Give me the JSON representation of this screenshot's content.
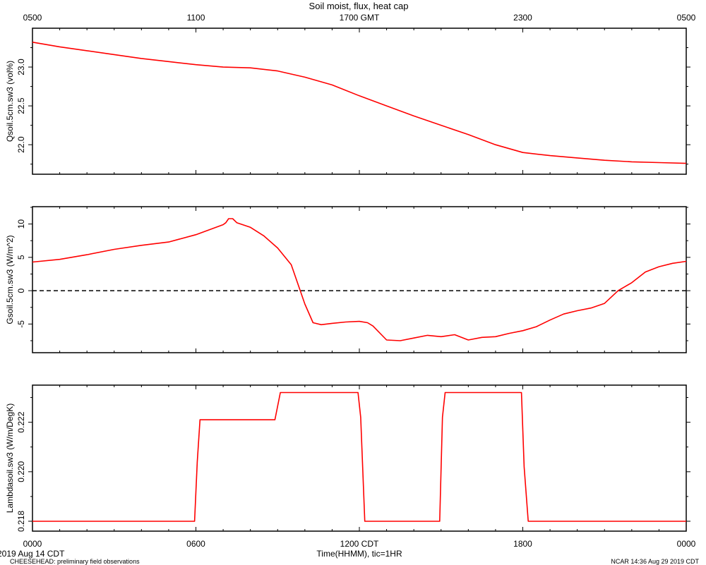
{
  "figure": {
    "title": "Soil moist, flux, heat cap",
    "colors": {
      "line": "#ff0000",
      "axis": "#000000",
      "zero_line": "#000000"
    },
    "top_axis_ticks": [
      "0500",
      "1100",
      "1700 GMT",
      "2300",
      "0500"
    ],
    "bottom_axis_ticks": [
      "0000",
      "0600",
      "1200 CDT",
      "1800",
      "0000"
    ],
    "xlabel": "Time(HHMM), tic=1HR",
    "start_date": "2019 Aug 14 CDT",
    "footer_left": "CHEESEHEAD: preliminary field observations",
    "footer_right": "NCAR 14:36 Aug 29 2019 CDT"
  },
  "chart_data": [
    {
      "type": "line",
      "ylabel": "Qsoil.5cm.sw3 (vol%)",
      "ylim": [
        21.62,
        23.5
      ],
      "yticks": [
        22.0,
        22.5,
        23.0
      ],
      "ytick_labels": [
        "22.0",
        "22.5",
        "23.0"
      ],
      "zero_line": false,
      "series": [
        {
          "x": [
            0,
            1,
            2,
            3,
            4,
            5,
            6,
            7,
            8,
            9,
            9.5,
            10,
            11,
            12,
            13,
            14,
            15,
            16,
            17,
            18,
            19,
            20,
            21,
            22,
            23,
            24
          ],
          "y": [
            23.32,
            23.26,
            23.21,
            23.16,
            23.11,
            23.07,
            23.03,
            23.0,
            22.99,
            22.95,
            22.91,
            22.87,
            22.77,
            22.63,
            22.5,
            22.37,
            22.25,
            22.13,
            22.0,
            21.9,
            21.86,
            21.83,
            21.8,
            21.78,
            21.77,
            21.76
          ]
        }
      ]
    },
    {
      "type": "line",
      "ylabel": "Gsoil.5cm.sw3 (W/m^2)",
      "ylim": [
        -9.3,
        12.6
      ],
      "yticks": [
        -5,
        0,
        5,
        10
      ],
      "ytick_labels": [
        "-5",
        "0",
        "5",
        "10"
      ],
      "zero_line": true,
      "series": [
        {
          "x": [
            0,
            1,
            2,
            3,
            4,
            5,
            6,
            7,
            7.1,
            7.2,
            7.35,
            7.5,
            8,
            8.5,
            9,
            9.5,
            10,
            10.3,
            10.6,
            11,
            11.5,
            12,
            12.3,
            12.5,
            13,
            13.5,
            14,
            14.5,
            15,
            15.5,
            16,
            16.5,
            17,
            17.5,
            18,
            18.5,
            19,
            19.5,
            20,
            20.5,
            21,
            21.5,
            22,
            22.5,
            23,
            23.5,
            24
          ],
          "y": [
            4.3,
            4.7,
            5.4,
            6.2,
            6.8,
            7.3,
            8.4,
            9.9,
            10.2,
            10.8,
            10.8,
            10.2,
            9.5,
            8.2,
            6.4,
            3.9,
            -2.0,
            -4.8,
            -5.1,
            -4.9,
            -4.7,
            -4.6,
            -4.8,
            -5.3,
            -7.4,
            -7.5,
            -7.1,
            -6.7,
            -6.9,
            -6.6,
            -7.4,
            -7.0,
            -6.9,
            -6.4,
            -6.0,
            -5.4,
            -4.4,
            -3.5,
            -3.0,
            -2.6,
            -1.9,
            0.0,
            1.2,
            2.8,
            3.6,
            4.1,
            4.4
          ]
        }
      ]
    },
    {
      "type": "line",
      "ylabel": "Lambdasoil.sw3 (W/m/DegK)",
      "ylim": [
        0.2176,
        0.2235
      ],
      "yticks": [
        0.218,
        0.22,
        0.222
      ],
      "ytick_labels": [
        "0.218",
        "0.220",
        "0.222"
      ],
      "zero_line": false,
      "series": [
        {
          "x": [
            0,
            5.95,
            6.05,
            6.15,
            8.8,
            8.9,
            9.1,
            11.95,
            12.05,
            12.2,
            14.95,
            15.05,
            15.15,
            17.95,
            18.05,
            18.2,
            24
          ],
          "y": [
            0.218,
            0.218,
            0.2204,
            0.2221,
            0.2221,
            0.2221,
            0.2232,
            0.2232,
            0.2222,
            0.218,
            0.218,
            0.2222,
            0.2232,
            0.2232,
            0.2202,
            0.218,
            0.218
          ]
        }
      ]
    }
  ]
}
